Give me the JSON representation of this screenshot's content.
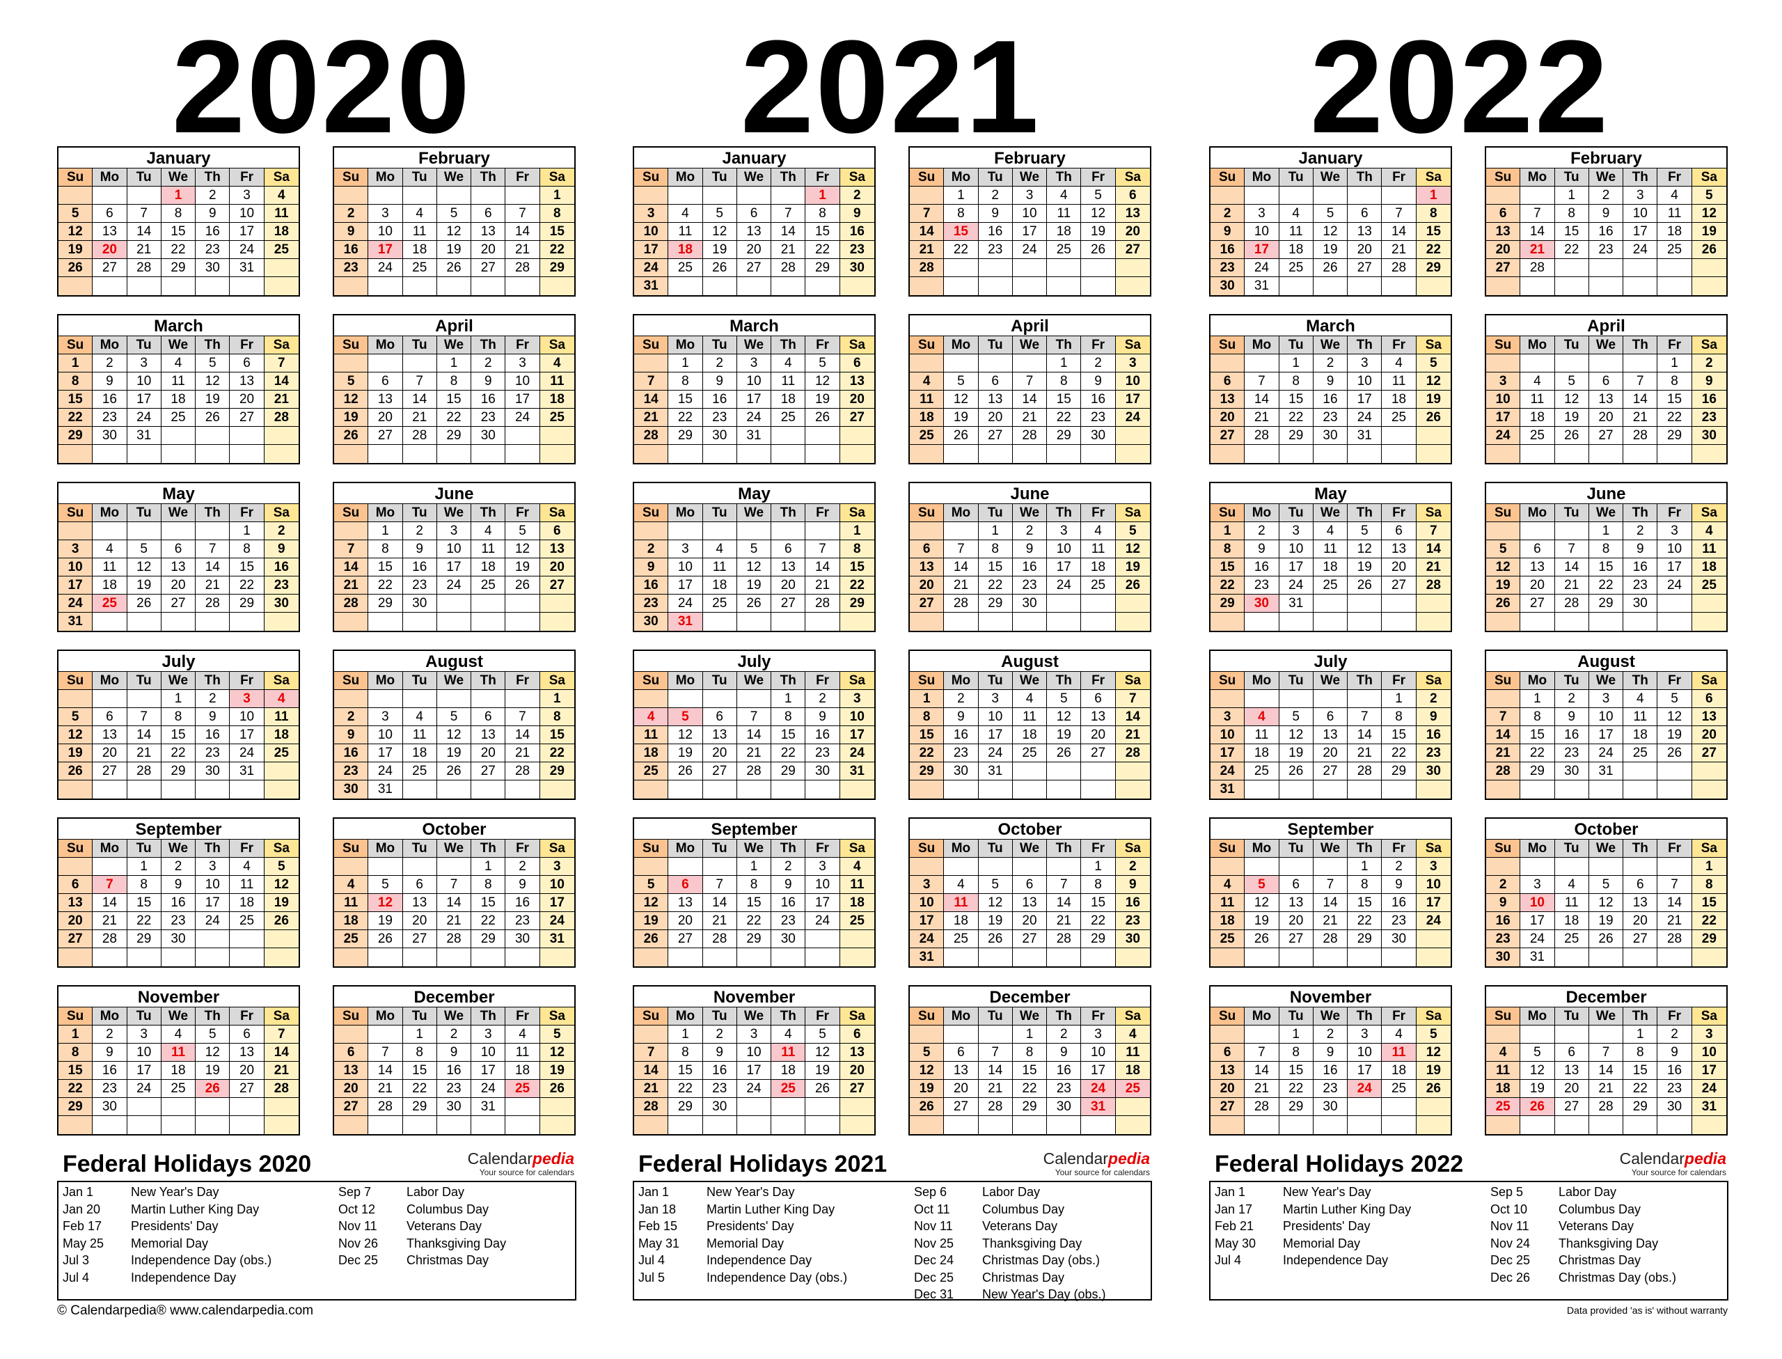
{
  "weekday_labels": [
    "Su",
    "Mo",
    "Tu",
    "We",
    "Th",
    "Fr",
    "Sa"
  ],
  "years": [
    {
      "year": "2020",
      "months": [
        {
          "name": "January",
          "start": 3,
          "days": 31,
          "holidays": [
            1,
            20
          ]
        },
        {
          "name": "February",
          "start": 6,
          "days": 29,
          "holidays": [
            17
          ]
        },
        {
          "name": "March",
          "start": 0,
          "days": 31,
          "holidays": []
        },
        {
          "name": "April",
          "start": 3,
          "days": 30,
          "holidays": []
        },
        {
          "name": "May",
          "start": 5,
          "days": 31,
          "holidays": [
            25
          ]
        },
        {
          "name": "June",
          "start": 1,
          "days": 30,
          "holidays": []
        },
        {
          "name": "July",
          "start": 3,
          "days": 31,
          "holidays": [
            3,
            4
          ]
        },
        {
          "name": "August",
          "start": 6,
          "days": 31,
          "holidays": []
        },
        {
          "name": "September",
          "start": 2,
          "days": 30,
          "holidays": [
            7
          ]
        },
        {
          "name": "October",
          "start": 4,
          "days": 31,
          "holidays": [
            12
          ]
        },
        {
          "name": "November",
          "start": 0,
          "days": 30,
          "holidays": [
            11,
            26
          ]
        },
        {
          "name": "December",
          "start": 2,
          "days": 31,
          "holidays": [
            25
          ]
        }
      ],
      "federal_title": "Federal Holidays 2020",
      "holidays_left": [
        {
          "date": "Jan 1",
          "name": "New Year's Day"
        },
        {
          "date": "Jan 20",
          "name": "Martin Luther King Day"
        },
        {
          "date": "Feb 17",
          "name": "Presidents' Day"
        },
        {
          "date": "May 25",
          "name": "Memorial Day"
        },
        {
          "date": "Jul 3",
          "name": "Independence Day (obs.)"
        },
        {
          "date": "Jul 4",
          "name": "Independence Day"
        }
      ],
      "holidays_right": [
        {
          "date": "Sep 7",
          "name": "Labor Day"
        },
        {
          "date": "Oct 12",
          "name": "Columbus Day"
        },
        {
          "date": "Nov 11",
          "name": "Veterans Day"
        },
        {
          "date": "Nov 26",
          "name": "Thanksgiving Day"
        },
        {
          "date": "Dec 25",
          "name": "Christmas Day"
        }
      ]
    },
    {
      "year": "2021",
      "months": [
        {
          "name": "January",
          "start": 5,
          "days": 31,
          "holidays": [
            1,
            18
          ]
        },
        {
          "name": "February",
          "start": 1,
          "days": 28,
          "holidays": [
            15
          ]
        },
        {
          "name": "March",
          "start": 1,
          "days": 31,
          "holidays": []
        },
        {
          "name": "April",
          "start": 4,
          "days": 30,
          "holidays": []
        },
        {
          "name": "May",
          "start": 6,
          "days": 31,
          "holidays": [
            31
          ]
        },
        {
          "name": "June",
          "start": 2,
          "days": 30,
          "holidays": []
        },
        {
          "name": "July",
          "start": 4,
          "days": 31,
          "holidays": [
            4,
            5
          ]
        },
        {
          "name": "August",
          "start": 0,
          "days": 31,
          "holidays": []
        },
        {
          "name": "September",
          "start": 3,
          "days": 30,
          "holidays": [
            6
          ]
        },
        {
          "name": "October",
          "start": 5,
          "days": 31,
          "holidays": [
            11
          ]
        },
        {
          "name": "November",
          "start": 1,
          "days": 30,
          "holidays": [
            11,
            25
          ]
        },
        {
          "name": "December",
          "start": 3,
          "days": 31,
          "holidays": [
            24,
            25,
            31
          ]
        }
      ],
      "federal_title": "Federal Holidays 2021",
      "holidays_left": [
        {
          "date": "Jan 1",
          "name": "New Year's Day"
        },
        {
          "date": "Jan 18",
          "name": "Martin Luther King Day"
        },
        {
          "date": "Feb 15",
          "name": "Presidents' Day"
        },
        {
          "date": "May 31",
          "name": "Memorial Day"
        },
        {
          "date": "Jul 4",
          "name": "Independence Day"
        },
        {
          "date": "Jul 5",
          "name": "Independence Day (obs.)"
        }
      ],
      "holidays_right": [
        {
          "date": "Sep 6",
          "name": "Labor Day"
        },
        {
          "date": "Oct 11",
          "name": "Columbus Day"
        },
        {
          "date": "Nov 11",
          "name": "Veterans Day"
        },
        {
          "date": "Nov 25",
          "name": "Thanksgiving Day"
        },
        {
          "date": "Dec 24",
          "name": "Christmas Day (obs.)"
        },
        {
          "date": "Dec 25",
          "name": "Christmas Day"
        },
        {
          "date": "Dec 31",
          "name": "New Year's Day (obs.)"
        }
      ]
    },
    {
      "year": "2022",
      "months": [
        {
          "name": "January",
          "start": 6,
          "days": 31,
          "holidays": [
            1,
            17
          ]
        },
        {
          "name": "February",
          "start": 2,
          "days": 28,
          "holidays": [
            21
          ]
        },
        {
          "name": "March",
          "start": 2,
          "days": 31,
          "holidays": []
        },
        {
          "name": "April",
          "start": 5,
          "days": 30,
          "holidays": []
        },
        {
          "name": "May",
          "start": 0,
          "days": 31,
          "holidays": [
            30
          ]
        },
        {
          "name": "June",
          "start": 3,
          "days": 30,
          "holidays": []
        },
        {
          "name": "July",
          "start": 5,
          "days": 31,
          "holidays": [
            4
          ]
        },
        {
          "name": "August",
          "start": 1,
          "days": 31,
          "holidays": []
        },
        {
          "name": "September",
          "start": 4,
          "days": 30,
          "holidays": [
            5
          ]
        },
        {
          "name": "October",
          "start": 6,
          "days": 31,
          "holidays": [
            10
          ]
        },
        {
          "name": "November",
          "start": 2,
          "days": 30,
          "holidays": [
            11,
            24
          ]
        },
        {
          "name": "December",
          "start": 4,
          "days": 31,
          "holidays": [
            25,
            26
          ]
        }
      ],
      "federal_title": "Federal Holidays 2022",
      "holidays_left": [
        {
          "date": "Jan 1",
          "name": "New Year's Day"
        },
        {
          "date": "Jan 17",
          "name": "Martin Luther King Day"
        },
        {
          "date": "Feb 21",
          "name": "Presidents' Day"
        },
        {
          "date": "May 30",
          "name": "Memorial Day"
        },
        {
          "date": "Jul 4",
          "name": "Independence Day"
        }
      ],
      "holidays_right": [
        {
          "date": "Sep 5",
          "name": "Labor Day"
        },
        {
          "date": "Oct 10",
          "name": "Columbus Day"
        },
        {
          "date": "Nov 11",
          "name": "Veterans Day"
        },
        {
          "date": "Nov 24",
          "name": "Thanksgiving Day"
        },
        {
          "date": "Dec 25",
          "name": "Christmas Day"
        },
        {
          "date": "Dec 26",
          "name": "Christmas Day (obs.)"
        }
      ]
    }
  ],
  "brand": {
    "name_prefix": "Calendar",
    "name_suffix": "pedia",
    "tagline": "Your source for calendars"
  },
  "footer": {
    "left": "© Calendarpedia®   www.calendarpedia.com",
    "right": "Data provided 'as is' without warranty"
  },
  "colors": {
    "sunday": "#fdd9b5",
    "saturday": "#fff3c6",
    "holiday_text": "#e60000",
    "holiday_bg": "#f9c8cc"
  }
}
